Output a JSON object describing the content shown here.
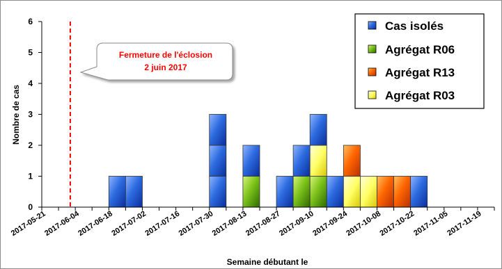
{
  "chart_data": {
    "type": "bar",
    "stacked": true,
    "title": "",
    "xlabel": "Semaine débutant le",
    "ylabel": "Nombre de cas",
    "ylim": [
      0,
      6
    ],
    "yticks": [
      0,
      1,
      2,
      3,
      4,
      5,
      6
    ],
    "grid": false,
    "legend_position": "top-right",
    "categories": [
      "2017-05-21",
      "2017-05-28",
      "2017-06-04",
      "2017-06-11",
      "2017-06-18",
      "2017-06-25",
      "2017-07-02",
      "2017-07-09",
      "2017-07-16",
      "2017-07-23",
      "2017-07-30",
      "2017-08-06",
      "2017-08-13",
      "2017-08-20",
      "2017-08-27",
      "2017-09-03",
      "2017-09-10",
      "2017-09-17",
      "2017-09-24",
      "2017-10-01",
      "2017-10-08",
      "2017-10-15",
      "2017-10-22",
      "2017-10-29",
      "2017-11-05",
      "2017-11-12",
      "2017-11-19"
    ],
    "tick_labels": [
      "2017-05-21",
      "2017-06-04",
      "2017-06-18",
      "2017-07-02",
      "2017-07-16",
      "2017-07-30",
      "2017-08-13",
      "2017-08-27",
      "2017-09-10",
      "2017-09-24",
      "2017-10-08",
      "2017-10-22",
      "2017-11-05",
      "2017-11-19"
    ],
    "series": [
      {
        "name": "Agrégat R06",
        "color": "#66b000",
        "values": [
          0,
          0,
          0,
          0,
          0,
          0,
          0,
          0,
          0,
          0,
          0,
          0,
          1,
          0,
          0,
          1,
          1,
          0,
          0,
          0,
          0,
          0,
          0,
          0,
          0,
          0,
          0
        ]
      },
      {
        "name": "Agrégat R03",
        "color": "#ffff44",
        "values": [
          0,
          0,
          0,
          0,
          0,
          0,
          0,
          0,
          0,
          0,
          0,
          0,
          0,
          0,
          0,
          0,
          1,
          0,
          1,
          1,
          0,
          0,
          0,
          0,
          0,
          0,
          0
        ]
      },
      {
        "name": "Agrégat R13",
        "color": "#ff6600",
        "values": [
          0,
          0,
          0,
          0,
          0,
          0,
          0,
          0,
          0,
          0,
          0,
          0,
          0,
          0,
          0,
          0,
          0,
          0,
          1,
          0,
          1,
          1,
          0,
          0,
          0,
          0,
          0
        ]
      },
      {
        "name": "Cas isolés",
        "color": "#2d6be0",
        "values": [
          0,
          0,
          0,
          0,
          1,
          1,
          0,
          0,
          0,
          0,
          3,
          0,
          1,
          0,
          1,
          1,
          1,
          1,
          0,
          0,
          0,
          0,
          1,
          0,
          0,
          0,
          0
        ]
      }
    ],
    "legend_order": [
      "Cas isolés",
      "Agrégat R06",
      "Agrégat R13",
      "Agrégat R03"
    ],
    "annotation": {
      "text_line1": "Fermeture de l'éclosion",
      "text_line2": "2 juin 2017",
      "color": "#ff0000",
      "marker_index": 1.7
    }
  }
}
